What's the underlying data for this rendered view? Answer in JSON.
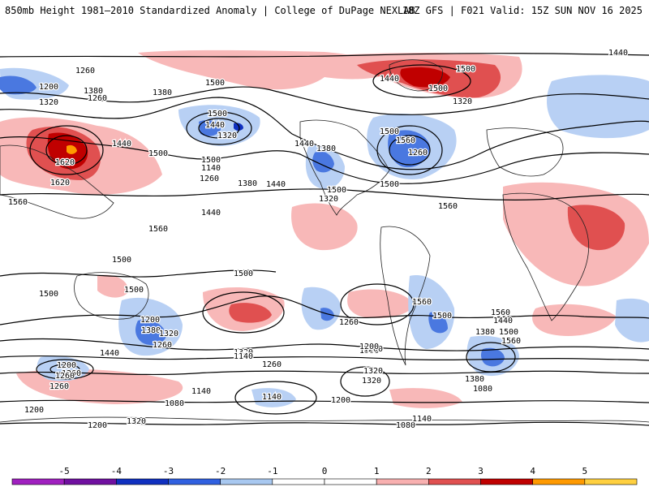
{
  "header": {
    "title": "850mb Height 1981–2010 Standardized Anomaly | College of DuPage NEXLAB",
    "run_info": "18Z GFS | F021 Valid: 15Z SUN NOV 16 2025"
  },
  "colorbar": {
    "ticks": [
      "-5",
      "-4",
      "-3",
      "-2",
      "-1",
      "0",
      "1",
      "2",
      "3",
      "4",
      "5"
    ],
    "colors": [
      "#a020c0",
      "#7010a0",
      "#1030c0",
      "#3060e0",
      "#a8c8f0",
      "#ffffff",
      "#ffffff",
      "#f8b0b0",
      "#e05050",
      "#c00000",
      "#ff9a00",
      "#ffd040"
    ]
  },
  "contour_labels": [
    "1440",
    "1500",
    "1200",
    "1320",
    "1260",
    "1380",
    "1500",
    "1440",
    "1320",
    "1500",
    "1440",
    "1380",
    "1320",
    "1560",
    "1260",
    "1320",
    "1560",
    "1500",
    "1440",
    "1620",
    "1560",
    "1620",
    "1560",
    "1140",
    "1260",
    "1380",
    "1440",
    "1500",
    "1380",
    "1440",
    "1260",
    "1500",
    "1500",
    "1500",
    "1500",
    "1560",
    "1500",
    "1500",
    "1500",
    "1500",
    "1440",
    "1380",
    "1320",
    "1260",
    "1560",
    "1500",
    "1440",
    "1380",
    "1560",
    "1500",
    "1440",
    "1380",
    "1320",
    "1320",
    "1200",
    "1260",
    "1200",
    "1260",
    "1200",
    "1140",
    "1140",
    "1200",
    "1320",
    "1380",
    "1080",
    "1140",
    "1080",
    "1080",
    "1140",
    "1200",
    "1260",
    "1260",
    "1200",
    "1320",
    "1200",
    "1260"
  ]
}
